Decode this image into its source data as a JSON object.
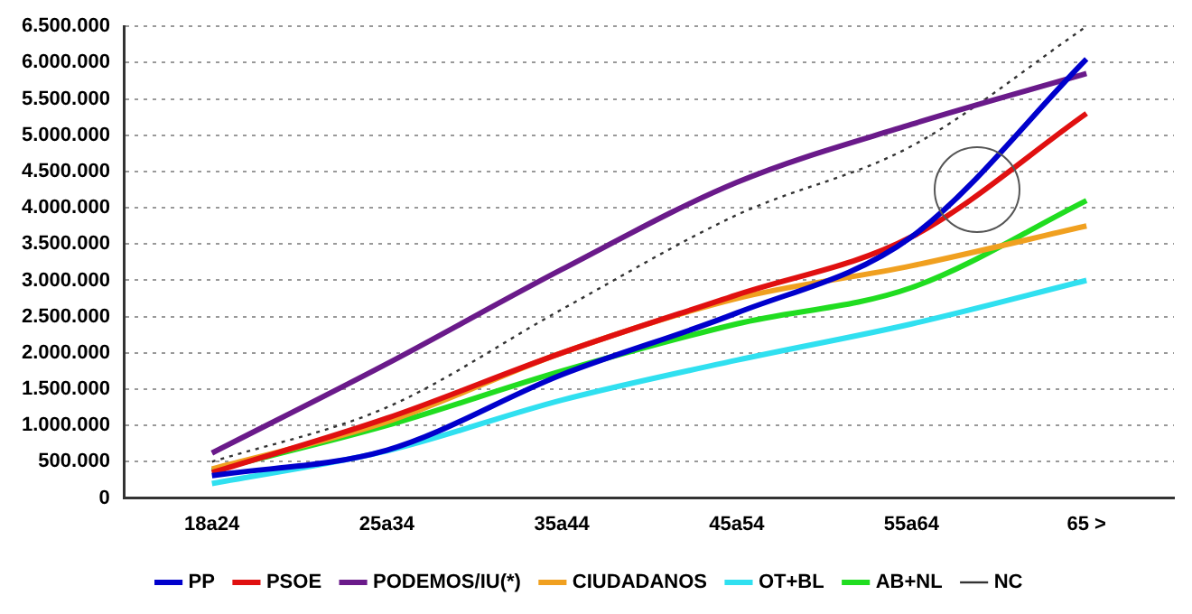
{
  "chart_data": {
    "type": "line",
    "categories": [
      "18a24",
      "25a34",
      "35a44",
      "45a54",
      "55a64",
      "65 >"
    ],
    "ylim": [
      0,
      6500000
    ],
    "yticks": [
      {
        "value": 0,
        "label": "0"
      },
      {
        "value": 500000,
        "label": "500.000"
      },
      {
        "value": 1000000,
        "label": "1.000.000"
      },
      {
        "value": 1500000,
        "label": "1.500.000"
      },
      {
        "value": 2000000,
        "label": "2.000.000"
      },
      {
        "value": 2500000,
        "label": "2.500.000"
      },
      {
        "value": 3000000,
        "label": "3.000.000"
      },
      {
        "value": 3500000,
        "label": "3.500.000"
      },
      {
        "value": 4000000,
        "label": "4.000.000"
      },
      {
        "value": 4500000,
        "label": "4.500.000"
      },
      {
        "value": 5000000,
        "label": "5.000.000"
      },
      {
        "value": 5500000,
        "label": "5.500.000"
      },
      {
        "value": 6000000,
        "label": "6.000.000"
      },
      {
        "value": 6500000,
        "label": "6.500.000"
      }
    ],
    "grid": "y",
    "legend": "bottom",
    "marker": "none",
    "line_style": "solid",
    "series": [
      {
        "name": "PP",
        "color": "#0000cc",
        "values": [
          310000,
          660000,
          1700000,
          2550000,
          3600000,
          6050000
        ]
      },
      {
        "name": "PSOE",
        "color": "#e01010",
        "values": [
          350000,
          1100000,
          2000000,
          2800000,
          3600000,
          5300000
        ]
      },
      {
        "name": "PODEMOS/IU(*)",
        "color": "#6a1a8a",
        "values": [
          620000,
          1850000,
          3150000,
          4350000,
          5150000,
          5850000
        ]
      },
      {
        "name": "CIUDADANOS",
        "color": "#f0a020",
        "values": [
          400000,
          1050000,
          2000000,
          2750000,
          3200000,
          3750000
        ]
      },
      {
        "name": "OT+BL",
        "color": "#30e0f0",
        "values": [
          200000,
          650000,
          1350000,
          1900000,
          2400000,
          3000000
        ]
      },
      {
        "name": "AB+NL",
        "color": "#20dd20",
        "values": [
          380000,
          1000000,
          1750000,
          2400000,
          2900000,
          4100000
        ]
      },
      {
        "name": "NC",
        "color": "#333333",
        "line_style": "dotted",
        "values": [
          500000,
          1250000,
          2600000,
          3900000,
          4850000,
          6500000
        ]
      }
    ]
  }
}
